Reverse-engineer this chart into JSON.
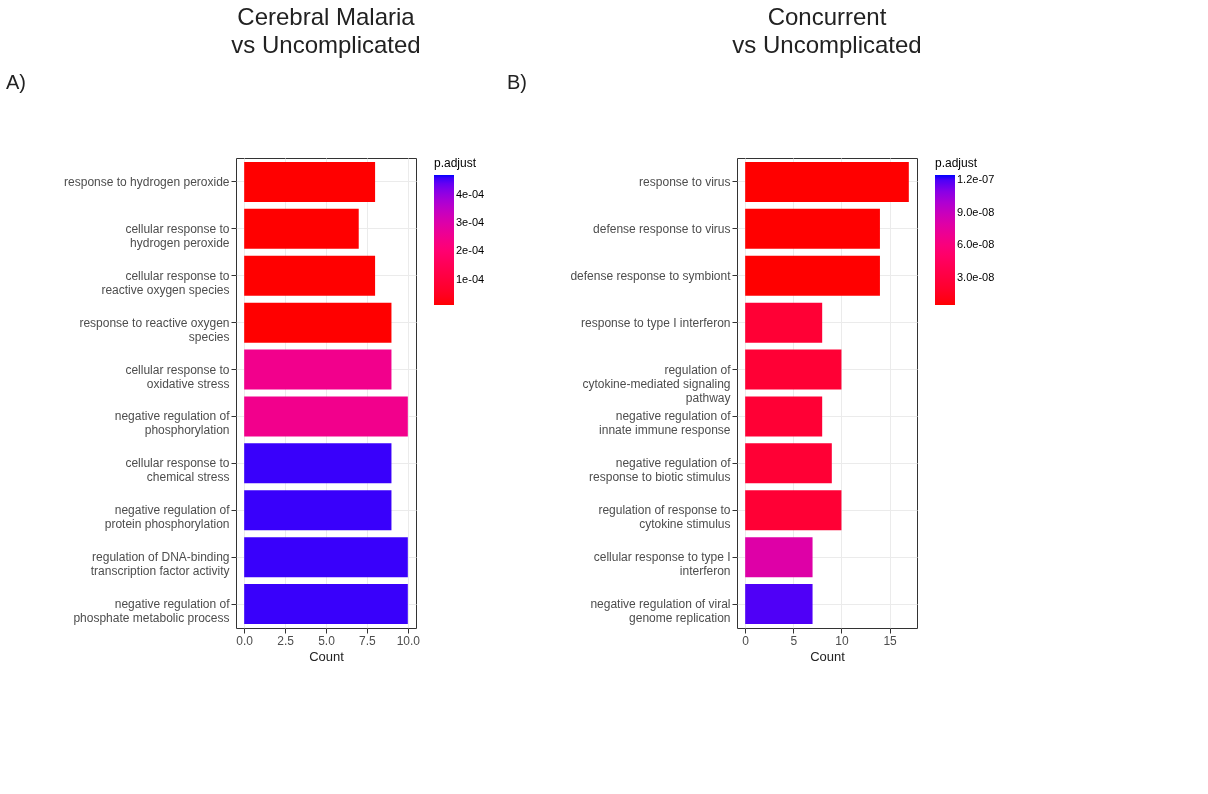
{
  "chart_data": [
    {
      "type": "bar",
      "orientation": "horizontal",
      "title": "Cerebral Malaria\nvs Uncomplicated",
      "annotations": [
        "A)"
      ],
      "xlabel": "Count",
      "clabel": "p.adjust",
      "grid": true,
      "categories": [
        "response to hydrogen peroxide",
        "cellular response to\nhydrogen peroxide",
        "cellular response to\nreactive oxygen species",
        "response to reactive oxygen\nspecies",
        "cellular response to\noxidative stress",
        "negative regulation of\nphosphorylation",
        "cellular response to\nchemical stress",
        "negative regulation of\nprotein phosphorylation",
        "regulation of DNA-binding\ntranscription factor activity",
        "negative regulation of\nphosphate metabolic process"
      ],
      "values": [
        8,
        7,
        8,
        9,
        9,
        10,
        9,
        9,
        10,
        10
      ],
      "cvalues": [
        1e-05,
        1e-05,
        1e-05,
        1e-05,
        0.00025,
        0.00025,
        0.00046,
        0.00046,
        0.00046,
        0.00046
      ],
      "clim": [
        1e-05,
        0.00047
      ],
      "cticks": [
        {
          "value": 0.0001,
          "label": "1e-04"
        },
        {
          "value": 0.0002,
          "label": "2e-04"
        },
        {
          "value": 0.0003,
          "label": "3e-04"
        },
        {
          "value": 0.0004,
          "label": "4e-04"
        }
      ],
      "xlim": [
        -0.5,
        10.5
      ],
      "xticks": [
        {
          "value": 0,
          "label": "0.0"
        },
        {
          "value": 2.5,
          "label": "2.5"
        },
        {
          "value": 5,
          "label": "5.0"
        },
        {
          "value": 7.5,
          "label": "7.5"
        },
        {
          "value": 10,
          "label": "10.0"
        }
      ]
    },
    {
      "type": "bar",
      "orientation": "horizontal",
      "title": "Concurrent\nvs Uncomplicated",
      "annotations": [
        "B)"
      ],
      "xlabel": "Count",
      "clabel": "p.adjust",
      "grid": true,
      "categories": [
        "response to virus",
        "defense response to virus",
        "defense response to symbiont",
        "response to type I interferon",
        "regulation of\ncytokine-mediated signaling\npathway",
        "negative regulation of\ninnate immune response",
        "negative regulation of\nresponse to biotic stimulus",
        "regulation of response to\ncytokine stimulus",
        "cellular response to type I\ninterferon",
        "negative regulation of viral\ngenome replication"
      ],
      "values": [
        17,
        14,
        14,
        8,
        10,
        8,
        9,
        10,
        7,
        7
      ],
      "cvalues": [
        5e-09,
        5e-09,
        5e-09,
        2.5e-08,
        2.5e-08,
        2.5e-08,
        2.5e-08,
        2.5e-08,
        8e-08,
        1.2e-07
      ],
      "clim": [
        5e-09,
        1.25e-07
      ],
      "cticks": [
        {
          "value": 3e-08,
          "label": "3.0e-08"
        },
        {
          "value": 6e-08,
          "label": "6.0e-08"
        },
        {
          "value": 9e-08,
          "label": "9.0e-08"
        },
        {
          "value": 1.2e-07,
          "label": "1.2e-07"
        }
      ],
      "xlim": [
        -0.85,
        17.85
      ],
      "xticks": [
        0,
        5,
        10,
        15
      ]
    }
  ]
}
